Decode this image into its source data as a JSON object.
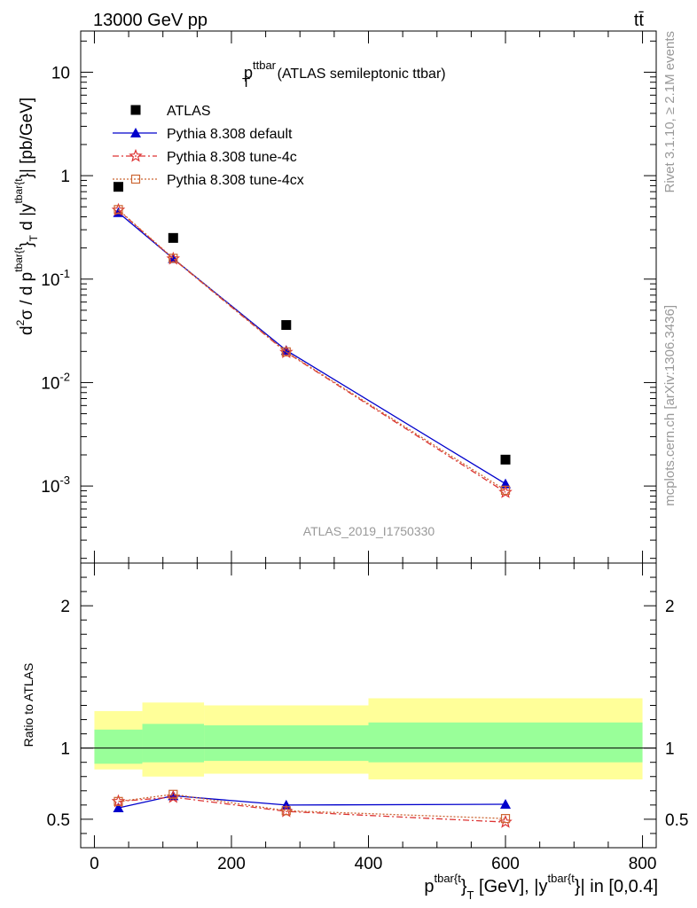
{
  "header": {
    "left": "13000 GeV pp",
    "right": "tt̄"
  },
  "side_labels": {
    "rivet": "Rivet 3.1.10, ≥ 2.1M events",
    "mcplots": "mcplots.cern.ch [arXiv:1306.3436]"
  },
  "watermark": "ATLAS_2019_I1750330",
  "chart_data": [
    {
      "type": "scatter",
      "panel": "main",
      "title": {
        "main": "p",
        "sub": "T",
        "sup": "ttbar",
        "rest": " (ATLAS semileptonic ttbar)"
      },
      "ylabel": {
        "a": "d",
        "a_sup": "2",
        "b": "σ / d p",
        "b_sup": "tbar{t",
        "c": "}",
        "c_sub": "T",
        "d": " d |y",
        "d_sup": "tbar{t",
        "e": "}| [pb/GeV]"
      },
      "yscale": "log",
      "ylim": [
        0.00018,
        25
      ],
      "xlim": [
        -20,
        820
      ],
      "yticks": [
        {
          "base": "10",
          "exp": "-3",
          "value": 0.001
        },
        {
          "base": "10",
          "exp": "-2",
          "value": 0.01
        },
        {
          "base": "10",
          "exp": "-1",
          "value": 0.1
        },
        {
          "base": "1",
          "exp": "",
          "value": 1
        },
        {
          "base": "10",
          "exp": "",
          "value": 10
        }
      ],
      "legend_position": "top-left",
      "series": [
        {
          "name": "ATLAS",
          "marker": "square-filled",
          "color": "#000000",
          "x": [
            35,
            115,
            280,
            600
          ],
          "y": [
            0.78,
            0.25,
            0.036,
            0.0018
          ]
        },
        {
          "name": "Pythia 8.308 default",
          "marker": "triangle-filled",
          "line": "solid",
          "color": "#0000cc",
          "x": [
            35,
            115,
            280,
            600
          ],
          "y": [
            0.44,
            0.158,
            0.0205,
            0.00105
          ]
        },
        {
          "name": "Pythia 8.308 tune-4c",
          "marker": "star",
          "line": "dashdot",
          "color": "#dd3333",
          "x": [
            35,
            115,
            280,
            600
          ],
          "y": [
            0.465,
            0.157,
            0.0196,
            0.00087
          ]
        },
        {
          "name": "Pythia 8.308 tune-4cx",
          "marker": "square-open",
          "line": "dotted",
          "color": "#cc6633",
          "x": [
            35,
            115,
            280,
            600
          ],
          "y": [
            0.47,
            0.159,
            0.0198,
            0.00091
          ]
        }
      ]
    },
    {
      "type": "scatter",
      "panel": "ratio",
      "ylabel": "Ratio to ATLAS",
      "ylim": [
        0.3,
        2.3
      ],
      "xlim": [
        -20,
        820
      ],
      "xticks": [
        0,
        200,
        400,
        600,
        800
      ],
      "yticks": [
        0.5,
        1,
        2
      ],
      "xlabel": {
        "a": "p",
        "a_sup": "tbar{t",
        "b": "}",
        "b_sub": "T",
        "c": " [GeV], |y",
        "c_sup": "tbar{t",
        "d": "}| in [0,0.4]"
      },
      "bands": [
        {
          "x0": 0,
          "x1": 70,
          "stat": [
            0.89,
            1.13
          ],
          "total": [
            0.85,
            1.26
          ]
        },
        {
          "x0": 70,
          "x1": 160,
          "stat": [
            0.9,
            1.17
          ],
          "total": [
            0.8,
            1.32
          ]
        },
        {
          "x0": 160,
          "x1": 400,
          "stat": [
            0.91,
            1.16
          ],
          "total": [
            0.82,
            1.3
          ]
        },
        {
          "x0": 400,
          "x1": 800,
          "stat": [
            0.9,
            1.18
          ],
          "total": [
            0.78,
            1.35
          ]
        }
      ],
      "band_colors": {
        "stat": "#99ff99",
        "total": "#ffff99"
      },
      "series": [
        {
          "name": "Pythia 8.308 default",
          "marker": "triangle-filled",
          "line": "solid",
          "color": "#0000cc",
          "x": [
            35,
            115,
            280,
            600
          ],
          "y": [
            0.58,
            0.665,
            0.6,
            0.605
          ]
        },
        {
          "name": "Pythia 8.308 tune-4c",
          "marker": "star",
          "line": "dashdot",
          "color": "#dd3333",
          "x": [
            35,
            115,
            280,
            600
          ],
          "y": [
            0.625,
            0.655,
            0.555,
            0.48
          ]
        },
        {
          "name": "Pythia 8.308 tune-4cx",
          "marker": "square-open",
          "line": "dotted",
          "color": "#cc6633",
          "x": [
            35,
            115,
            280,
            600
          ],
          "y": [
            0.625,
            0.675,
            0.56,
            0.505
          ]
        }
      ]
    }
  ]
}
